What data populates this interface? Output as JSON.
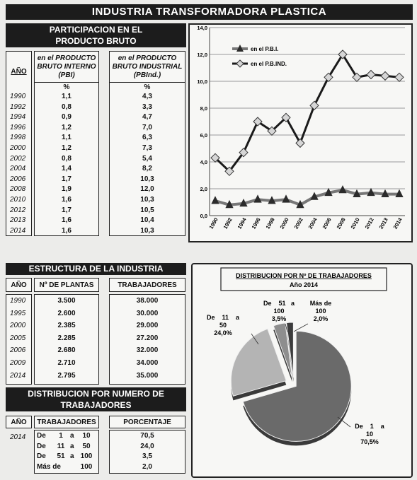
{
  "main_title": "INDUSTRIA TRANSFORMADORA PLASTICA",
  "participacion": {
    "title_line1": "PARTICIPACION EN EL",
    "title_line2": "PRODUCTO BRUTO",
    "col_year": "AÑO",
    "col_pbi_lines": [
      "en el PRODUCTO",
      "BRUTO INTERNO",
      "(PBI)"
    ],
    "col_pbind_lines": [
      "en el PRODUCTO",
      "BRUTO INDUSTRIAL",
      "(PBInd.)"
    ],
    "unit": "%",
    "rows": [
      {
        "year": "1990",
        "pbi": "1,1",
        "pbind": "4,3"
      },
      {
        "year": "1992",
        "pbi": "0,8",
        "pbind": "3,3"
      },
      {
        "year": "1994",
        "pbi": "0,9",
        "pbind": "4,7"
      },
      {
        "year": "1996",
        "pbi": "1,2",
        "pbind": "7,0"
      },
      {
        "year": "1998",
        "pbi": "1,1",
        "pbind": "6,3"
      },
      {
        "year": "2000",
        "pbi": "1,2",
        "pbind": "7,3"
      },
      {
        "year": "2002",
        "pbi": "0,8",
        "pbind": "5,4"
      },
      {
        "year": "2004",
        "pbi": "1,4",
        "pbind": "8,2"
      },
      {
        "year": "2006",
        "pbi": "1,7",
        "pbind": "10,3"
      },
      {
        "year": "2008",
        "pbi": "1,9",
        "pbind": "12,0"
      },
      {
        "year": "2010",
        "pbi": "1,6",
        "pbind": "10,3"
      },
      {
        "year": "2012",
        "pbi": "1,7",
        "pbind": "10,5"
      },
      {
        "year": "2013",
        "pbi": "1,6",
        "pbind": "10,4"
      },
      {
        "year": "2014",
        "pbi": "1,6",
        "pbind": "10,3"
      }
    ]
  },
  "estructura": {
    "title": "ESTRUCTURA DE LA INDUSTRIA",
    "col_year": "AÑO",
    "col_plantas": "Nº DE PLANTAS",
    "col_trabajadores": "TRABAJADORES",
    "rows": [
      {
        "year": "1990",
        "plantas": "3.500",
        "trabajadores": "38.000"
      },
      {
        "year": "1995",
        "plantas": "2.600",
        "trabajadores": "30.000"
      },
      {
        "year": "2000",
        "plantas": "2.385",
        "trabajadores": "29.000"
      },
      {
        "year": "2005",
        "plantas": "2.285",
        "trabajadores": "27.200"
      },
      {
        "year": "2006",
        "plantas": "2.680",
        "trabajadores": "32.000"
      },
      {
        "year": "2009",
        "plantas": "2.710",
        "trabajadores": "34.000"
      },
      {
        "year": "2014",
        "plantas": "2.795",
        "trabajadores": "35.000"
      }
    ]
  },
  "distribucion_tabla": {
    "title_line1": "DISTRIBUCION POR NUMERO DE",
    "title_line2": "TRABAJADORES",
    "col_year": "AÑO",
    "col_trab": "TRABAJADORES",
    "col_pct": "PORCENTAJE",
    "year": "2014",
    "rows": [
      {
        "a": "De",
        "b": "1",
        "c": "a",
        "d": "10",
        "pct": "70,5"
      },
      {
        "a": "De",
        "b": "11",
        "c": "a",
        "d": "50",
        "pct": "24,0"
      },
      {
        "a": "De",
        "b": "51",
        "c": "a",
        "d": "100",
        "pct": "3,5"
      },
      {
        "a": "Más de",
        "b": "",
        "c": "",
        "d": "100",
        "pct": "2,0"
      }
    ]
  },
  "colors": {
    "pbi_line": "#777777",
    "pbind_line": "#1a1a1a",
    "pie_main": "#6a6a6a",
    "pie_second": "#b4b4b4",
    "pie_third": "#8e8e8e",
    "pie_fourth": "#3c3c3c"
  },
  "chart_data": [
    {
      "type": "line",
      "x": [
        "1990",
        "1992",
        "1994",
        "1996",
        "1998",
        "2000",
        "2002",
        "2004",
        "2006",
        "2008",
        "2010",
        "2012",
        "2013",
        "2014"
      ],
      "series": [
        {
          "name": "en el P.B.I.",
          "marker": "triangle",
          "values": [
            1.1,
            0.8,
            0.9,
            1.2,
            1.1,
            1.2,
            0.8,
            1.4,
            1.7,
            1.9,
            1.6,
            1.7,
            1.6,
            1.6
          ]
        },
        {
          "name": "en el P.B.IND.",
          "marker": "diamond",
          "values": [
            4.3,
            3.3,
            4.7,
            7.0,
            6.3,
            7.3,
            5.4,
            8.2,
            10.3,
            12.0,
            10.3,
            10.5,
            10.4,
            10.3
          ]
        }
      ],
      "y_ticks": [
        "0,0",
        "2,0",
        "4,0",
        "6,0",
        "8,0",
        "10,0",
        "12,0",
        "14,0"
      ],
      "ylim": [
        0,
        14
      ],
      "grid": true,
      "legend": "top-left"
    },
    {
      "type": "pie",
      "title_line1": "DISTRIBUCION POR Nº  DE TRABAJADORES",
      "title_line2": "Año 2014",
      "slices": [
        {
          "label_lines": [
            "De    1    a",
            "10",
            "70,5%"
          ],
          "value": 70.5
        },
        {
          "label_lines": [
            "De    11    a",
            "50",
            "24,0%"
          ],
          "value": 24.0
        },
        {
          "label_lines": [
            "De    51   a",
            "100",
            "3,5%"
          ],
          "value": 3.5
        },
        {
          "label_lines": [
            "Más de",
            "100",
            "2,0%"
          ],
          "value": 2.0
        }
      ]
    }
  ]
}
